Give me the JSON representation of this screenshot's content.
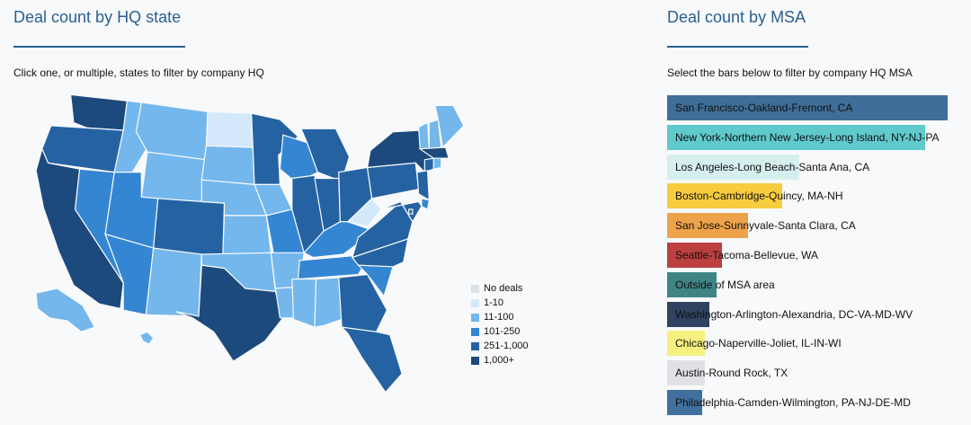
{
  "left": {
    "title": "Deal count by HQ state",
    "instruction": "Click one, or multiple, states to filter by company HQ"
  },
  "right": {
    "title": "Deal count by MSA",
    "instruction": "Select the bars below to filter by company HQ MSA"
  },
  "legend": [
    {
      "label": "No deals",
      "color": "#dde2e7"
    },
    {
      "label": "1-10",
      "color": "#d3e8fa"
    },
    {
      "label": "11-100",
      "color": "#74b7ec"
    },
    {
      "label": "101-250",
      "color": "#3486d2"
    },
    {
      "label": "251-1,000",
      "color": "#2562a2"
    },
    {
      "label": "1,000+",
      "color": "#1d4a7d"
    }
  ],
  "map_states": [
    {
      "id": "WA",
      "bin": 5
    },
    {
      "id": "OR",
      "bin": 4
    },
    {
      "id": "CA",
      "bin": 5
    },
    {
      "id": "NV",
      "bin": 3
    },
    {
      "id": "ID",
      "bin": 2
    },
    {
      "id": "MT",
      "bin": 2
    },
    {
      "id": "WY",
      "bin": 2
    },
    {
      "id": "UT",
      "bin": 3
    },
    {
      "id": "AZ",
      "bin": 3
    },
    {
      "id": "CO",
      "bin": 4
    },
    {
      "id": "NM",
      "bin": 2
    },
    {
      "id": "ND",
      "bin": 1
    },
    {
      "id": "SD",
      "bin": 2
    },
    {
      "id": "NE",
      "bin": 2
    },
    {
      "id": "KS",
      "bin": 2
    },
    {
      "id": "OK",
      "bin": 2
    },
    {
      "id": "TX",
      "bin": 5
    },
    {
      "id": "MN",
      "bin": 4
    },
    {
      "id": "IA",
      "bin": 2
    },
    {
      "id": "MO",
      "bin": 3
    },
    {
      "id": "AR",
      "bin": 2
    },
    {
      "id": "LA",
      "bin": 2
    },
    {
      "id": "WI",
      "bin": 3
    },
    {
      "id": "IL",
      "bin": 4
    },
    {
      "id": "MI",
      "bin": 4
    },
    {
      "id": "IN",
      "bin": 4
    },
    {
      "id": "OH",
      "bin": 4
    },
    {
      "id": "KY",
      "bin": 3
    },
    {
      "id": "TN",
      "bin": 3
    },
    {
      "id": "MS",
      "bin": 2
    },
    {
      "id": "AL",
      "bin": 2
    },
    {
      "id": "GA",
      "bin": 4
    },
    {
      "id": "FL",
      "bin": 4
    },
    {
      "id": "SC",
      "bin": 3
    },
    {
      "id": "NC",
      "bin": 4
    },
    {
      "id": "VA",
      "bin": 4
    },
    {
      "id": "WV",
      "bin": 1
    },
    {
      "id": "PA",
      "bin": 4
    },
    {
      "id": "NY",
      "bin": 5
    },
    {
      "id": "VT",
      "bin": 2
    },
    {
      "id": "NH",
      "bin": 2
    },
    {
      "id": "ME",
      "bin": 2
    },
    {
      "id": "MA",
      "bin": 5
    },
    {
      "id": "CT",
      "bin": 4
    },
    {
      "id": "RI",
      "bin": 2
    },
    {
      "id": "NJ",
      "bin": 4
    },
    {
      "id": "DE",
      "bin": 3
    },
    {
      "id": "MD",
      "bin": 4
    },
    {
      "id": "DC",
      "bin": 4
    },
    {
      "id": "AK",
      "bin": 2
    },
    {
      "id": "HI",
      "bin": 2
    }
  ],
  "chart_data": {
    "type": "bar",
    "orientation": "horizontal",
    "categories": [
      "San Francisco-Oakland-Fremont, CA",
      "New York-Northern New Jersey-Long Island, NY-NJ-PA",
      "Los Angeles-Long Beach-Santa Ana, CA",
      "Boston-Cambridge-Quincy, MA-NH",
      "San Jose-Sunnyvale-Santa Clara, CA",
      "Seattle-Tacoma-Bellevue, WA",
      "Outside of MSA area",
      "Washington-Arlington-Alexandria, DC-VA-MD-WV",
      "Chicago-Naperville-Joliet, IL-IN-WI",
      "Austin-Round Rock, TX",
      "Philadelphia-Camden-Wilmington, PA-NJ-DE-MD"
    ],
    "values": [
      1.0,
      0.92,
      0.47,
      0.41,
      0.29,
      0.195,
      0.175,
      0.15,
      0.135,
      0.135,
      0.125
    ],
    "value_unit": "fraction of largest bar",
    "colors": [
      "#3f6e98",
      "#5fc9cc",
      "#d6efee",
      "#f7cc3e",
      "#eea24a",
      "#bc4040",
      "#3f8585",
      "#2f4261",
      "#f6f17e",
      "#dfe1e4",
      "#41709c"
    ]
  }
}
